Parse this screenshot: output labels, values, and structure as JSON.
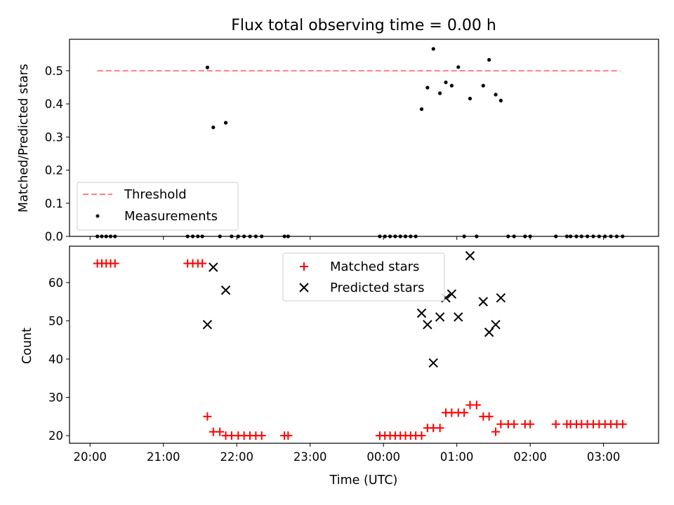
{
  "chart_data": {
    "title": "Flux total observing time = 0.00 h",
    "xlabel": "Time (UTC)",
    "x_unit": "hours since 20:00 UTC on the plotted night",
    "xlim": [
      -0.28,
      7.75
    ],
    "x_ticks": [
      {
        "x": 0,
        "label": "20:00"
      },
      {
        "x": 1,
        "label": "21:00"
      },
      {
        "x": 2,
        "label": "22:00"
      },
      {
        "x": 3,
        "label": "23:00"
      },
      {
        "x": 4,
        "label": "00:00"
      },
      {
        "x": 5,
        "label": "01:00"
      },
      {
        "x": 6,
        "label": "02:00"
      },
      {
        "x": 7,
        "label": "03:00"
      }
    ],
    "panels": [
      {
        "type": "scatter",
        "ylabel": "Matched/Predicted stars",
        "ylim": [
          0,
          0.595
        ],
        "y_ticks": [
          "0.0",
          "0.1",
          "0.2",
          "0.3",
          "0.4",
          "0.5"
        ],
        "legend": "lower-left",
        "series": [
          {
            "name": "Threshold",
            "kind": "dashed-line",
            "color": "#ff7f7f",
            "x": [
              0.1,
              7.23
            ],
            "y": [
              0.5,
              0.5
            ]
          },
          {
            "name": "Measurements",
            "kind": "dot",
            "color": "#000000",
            "points": [
              [
                0.1,
                0
              ],
              [
                0.16,
                0
              ],
              [
                0.22,
                0
              ],
              [
                0.28,
                0
              ],
              [
                0.34,
                0
              ],
              [
                1.33,
                0
              ],
              [
                1.4,
                0
              ],
              [
                1.47,
                0
              ],
              [
                1.53,
                0
              ],
              [
                1.6,
                0.51
              ],
              [
                1.68,
                0.329
              ],
              [
                1.77,
                0
              ],
              [
                1.85,
                0.343
              ],
              [
                1.93,
                0
              ],
              [
                2.02,
                0
              ],
              [
                2.1,
                0
              ],
              [
                2.18,
                0
              ],
              [
                2.26,
                0
              ],
              [
                2.34,
                0
              ],
              [
                2.65,
                0
              ],
              [
                2.7,
                0
              ],
              [
                3.95,
                0
              ],
              [
                4.02,
                0
              ],
              [
                4.09,
                0
              ],
              [
                4.16,
                0
              ],
              [
                4.23,
                0
              ],
              [
                4.3,
                0
              ],
              [
                4.37,
                0
              ],
              [
                4.44,
                0
              ],
              [
                4.52,
                0.384
              ],
              [
                4.6,
                0.449
              ],
              [
                4.68,
                0.566
              ],
              [
                4.77,
                0.432
              ],
              [
                4.85,
                0.465
              ],
              [
                4.93,
                0.455
              ],
              [
                5.02,
                0.511
              ],
              [
                5.1,
                0
              ],
              [
                5.18,
                0.416
              ],
              [
                5.27,
                0
              ],
              [
                5.36,
                0.455
              ],
              [
                5.44,
                0.533
              ],
              [
                5.53,
                0.428
              ],
              [
                5.6,
                0.41
              ],
              [
                5.7,
                0
              ],
              [
                5.78,
                0
              ],
              [
                5.93,
                0
              ],
              [
                6.0,
                0
              ],
              [
                6.35,
                0
              ],
              [
                6.5,
                0
              ],
              [
                6.55,
                0
              ],
              [
                6.63,
                0
              ],
              [
                6.7,
                0
              ],
              [
                6.78,
                0
              ],
              [
                6.86,
                0
              ],
              [
                6.94,
                0
              ],
              [
                7.02,
                0
              ],
              [
                7.1,
                0
              ],
              [
                7.18,
                0
              ],
              [
                7.26,
                0
              ]
            ]
          }
        ]
      },
      {
        "type": "scatter",
        "ylabel": "Count",
        "ylim": [
          18,
          69.5
        ],
        "y_ticks": [
          "20",
          "30",
          "40",
          "50",
          "60"
        ],
        "legend": "top-center",
        "series": [
          {
            "name": "Matched stars",
            "kind": "plus",
            "color": "#ff0000",
            "points": [
              [
                0.1,
                65
              ],
              [
                0.16,
                65
              ],
              [
                0.22,
                65
              ],
              [
                0.28,
                65
              ],
              [
                0.34,
                65
              ],
              [
                1.33,
                65
              ],
              [
                1.4,
                65
              ],
              [
                1.47,
                65
              ],
              [
                1.53,
                65
              ],
              [
                1.6,
                25
              ],
              [
                1.68,
                21
              ],
              [
                1.77,
                21
              ],
              [
                1.85,
                20
              ],
              [
                1.93,
                20
              ],
              [
                2.02,
                20
              ],
              [
                2.1,
                20
              ],
              [
                2.18,
                20
              ],
              [
                2.26,
                20
              ],
              [
                2.34,
                20
              ],
              [
                2.65,
                20
              ],
              [
                2.7,
                20
              ],
              [
                3.95,
                20
              ],
              [
                4.02,
                20
              ],
              [
                4.09,
                20
              ],
              [
                4.16,
                20
              ],
              [
                4.23,
                20
              ],
              [
                4.3,
                20
              ],
              [
                4.37,
                20
              ],
              [
                4.44,
                20
              ],
              [
                4.52,
                20
              ],
              [
                4.6,
                22
              ],
              [
                4.68,
                22
              ],
              [
                4.77,
                22
              ],
              [
                4.85,
                26
              ],
              [
                4.93,
                26
              ],
              [
                5.02,
                26
              ],
              [
                5.1,
                26
              ],
              [
                5.18,
                28
              ],
              [
                5.27,
                28
              ],
              [
                5.36,
                25
              ],
              [
                5.44,
                25
              ],
              [
                5.53,
                21
              ],
              [
                5.6,
                23
              ],
              [
                5.7,
                23
              ],
              [
                5.78,
                23
              ],
              [
                5.93,
                23
              ],
              [
                6.0,
                23
              ],
              [
                6.35,
                23
              ],
              [
                6.5,
                23
              ],
              [
                6.55,
                23
              ],
              [
                6.63,
                23
              ],
              [
                6.7,
                23
              ],
              [
                6.78,
                23
              ],
              [
                6.86,
                23
              ],
              [
                6.94,
                23
              ],
              [
                7.02,
                23
              ],
              [
                7.1,
                23
              ],
              [
                7.18,
                23
              ],
              [
                7.26,
                23
              ]
            ]
          },
          {
            "name": "Predicted stars",
            "kind": "x",
            "color": "#000000",
            "points": [
              [
                1.6,
                49
              ],
              [
                1.68,
                64
              ],
              [
                1.85,
                58
              ],
              [
                4.52,
                52
              ],
              [
                4.6,
                49
              ],
              [
                4.68,
                39
              ],
              [
                4.77,
                51
              ],
              [
                4.85,
                56
              ],
              [
                4.93,
                57
              ],
              [
                5.02,
                51
              ],
              [
                5.18,
                67
              ],
              [
                5.36,
                55
              ],
              [
                5.44,
                47
              ],
              [
                5.53,
                49
              ],
              [
                5.6,
                56
              ]
            ]
          }
        ]
      }
    ]
  }
}
